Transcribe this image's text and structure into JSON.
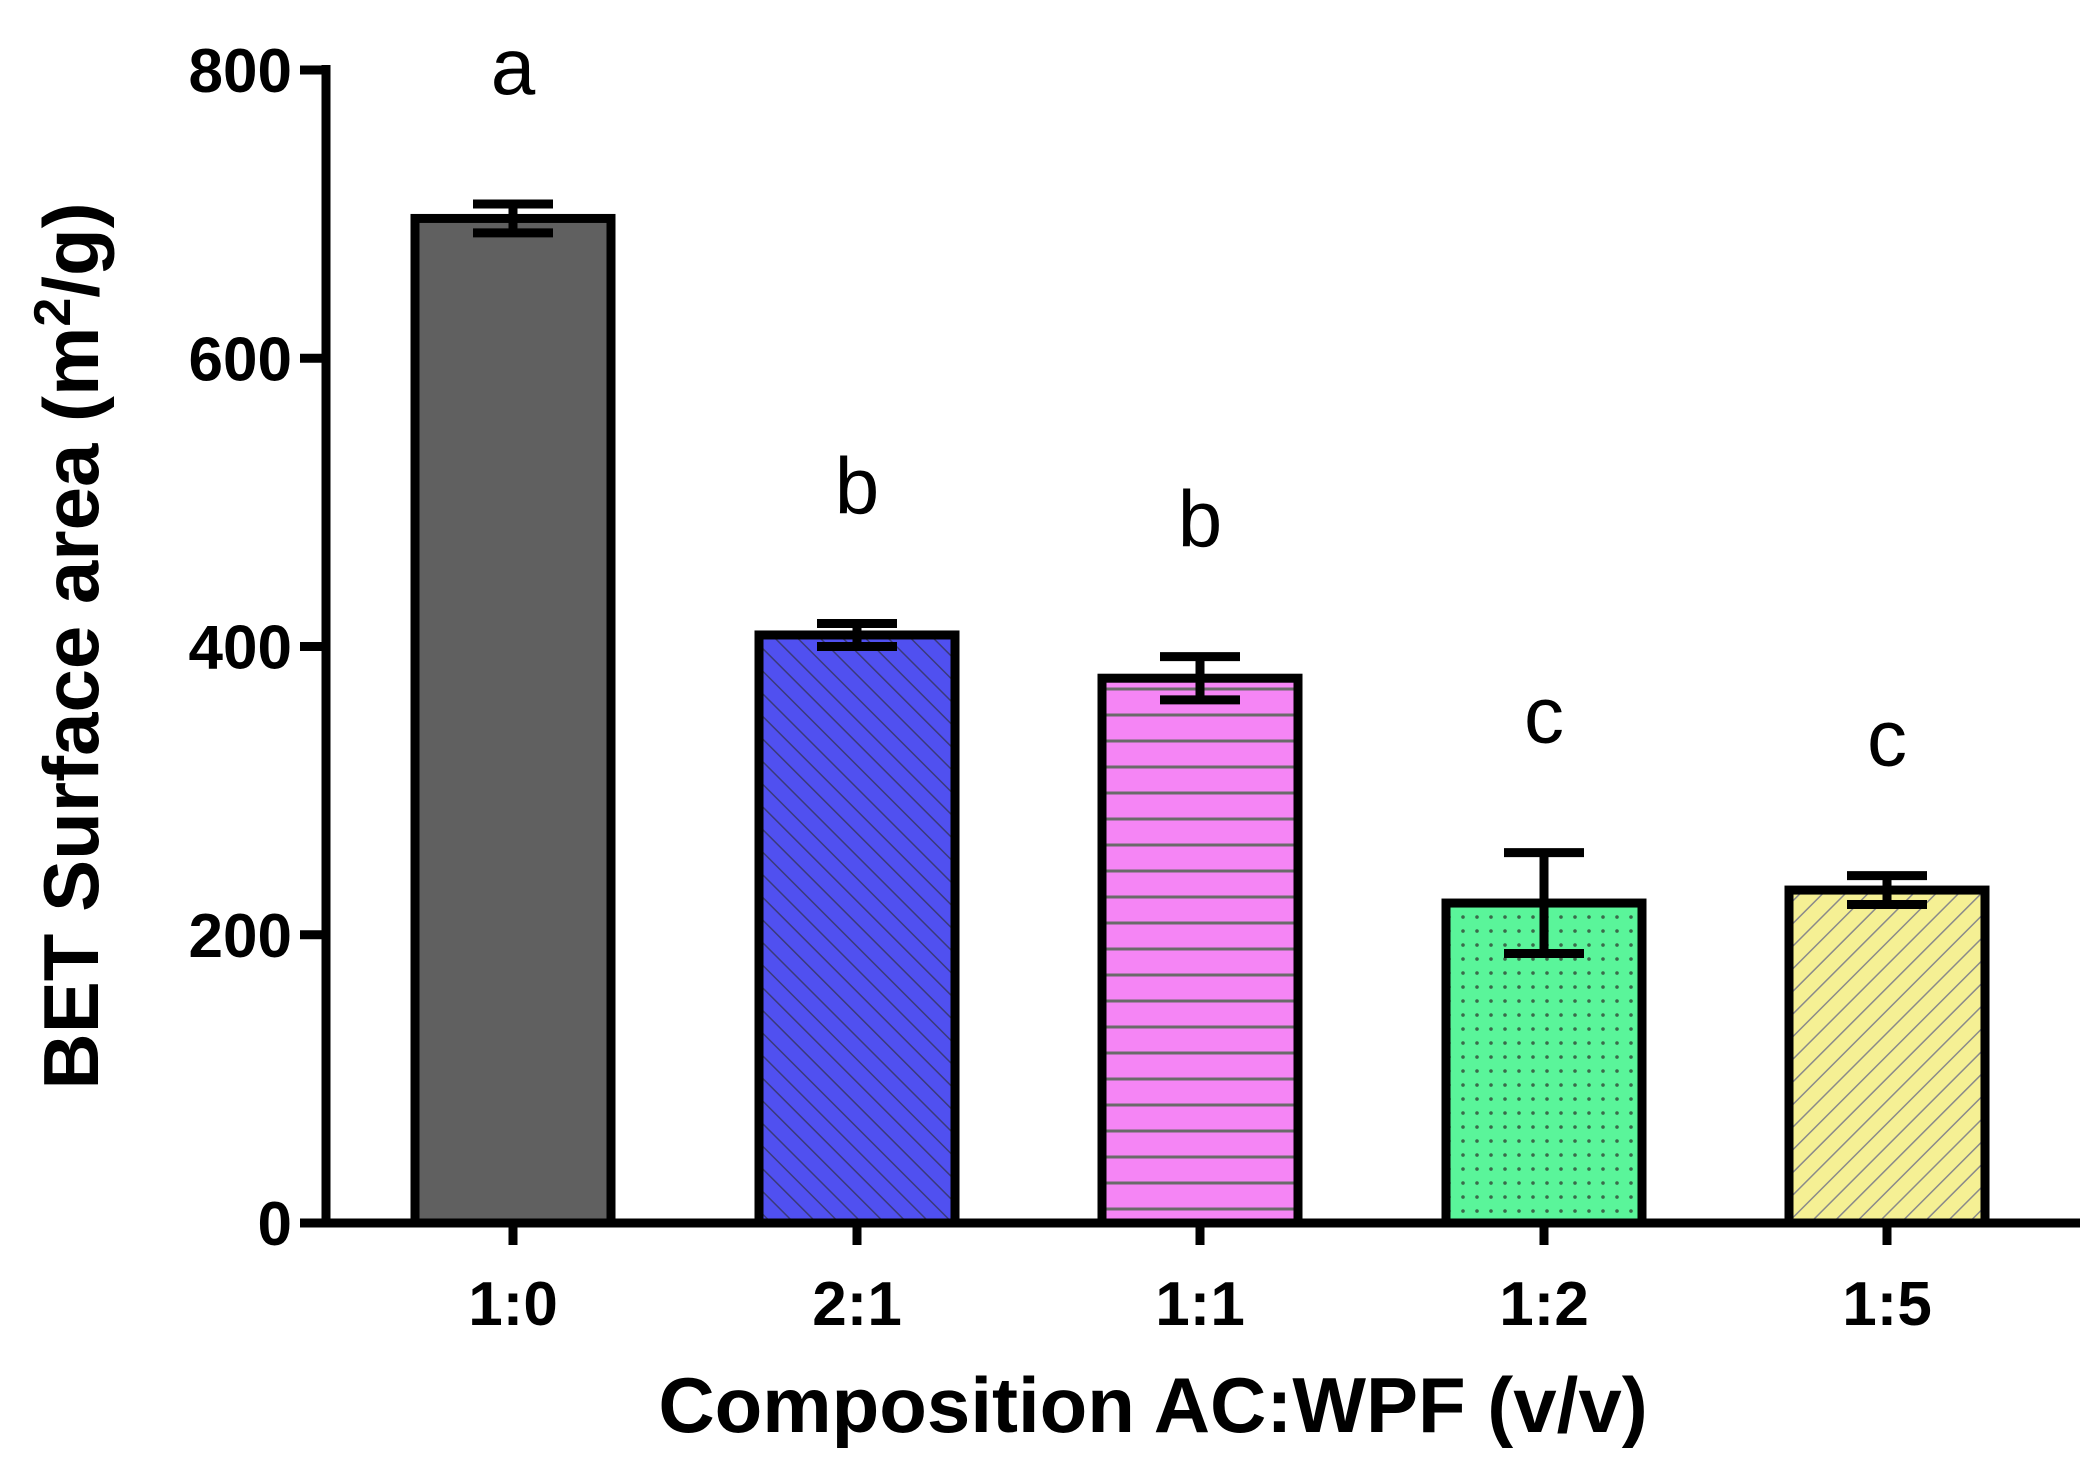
{
  "chart_data": {
    "type": "bar",
    "title": "",
    "xlabel": "Composition AC:WPF (v/v)",
    "ylabel_main": "BET Surface area (m",
    "ylabel_sup": "2",
    "ylabel_tail": "/g)",
    "ylim": [
      0,
      800
    ],
    "yticks": [
      "0",
      "200",
      "400",
      "600",
      "800"
    ],
    "ytick_values": [
      0,
      200,
      400,
      600,
      800
    ],
    "categories": [
      "1:0",
      "2:1",
      "1:1",
      "1:2",
      "1:5"
    ],
    "values": [
      697,
      408,
      378,
      222,
      231
    ],
    "errors": [
      10,
      8,
      15,
      35,
      10
    ],
    "significance": [
      "a",
      "b",
      "b",
      "c",
      "c"
    ],
    "bar_colors": [
      "#606060",
      "#5050f0",
      "#f585f5",
      "#5af59a",
      "#f5f094"
    ],
    "bar_patterns": [
      "solid",
      "diagonal",
      "horizontal",
      "dots",
      "diagonal"
    ],
    "grid": false
  }
}
